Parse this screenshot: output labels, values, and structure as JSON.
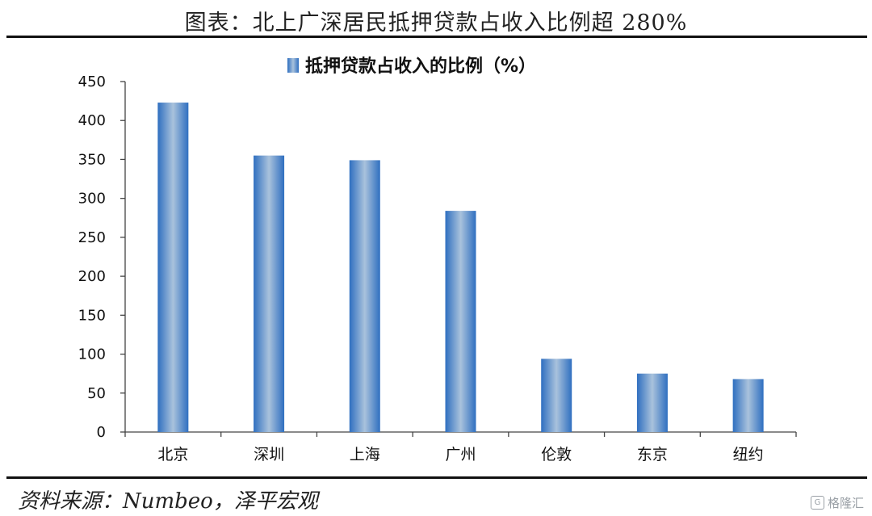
{
  "header": {
    "title": "图表：北上广深居民抵押贷款占收入比例超 280%"
  },
  "footer": {
    "source": "资料来源：Numbeo，泽平宏观",
    "watermark": "格隆汇"
  },
  "chart_data": {
    "type": "bar",
    "series": [
      {
        "name": "抵押贷款占收入的比例（%）",
        "values": [
          423,
          355,
          349,
          284,
          94,
          75,
          68
        ]
      }
    ],
    "categories": [
      "北京",
      "深圳",
      "上海",
      "广州",
      "伦敦",
      "东京",
      "纽约"
    ],
    "ylim": [
      0,
      450
    ],
    "yticks": [
      0,
      50,
      100,
      150,
      200,
      250,
      300,
      350,
      400,
      450
    ],
    "legend": "top-center",
    "grid": false,
    "colors": {
      "bar_edge": "#2f6fc0",
      "bar_center": "#a9c2dc",
      "legend_marker": "#3a78c8"
    }
  }
}
